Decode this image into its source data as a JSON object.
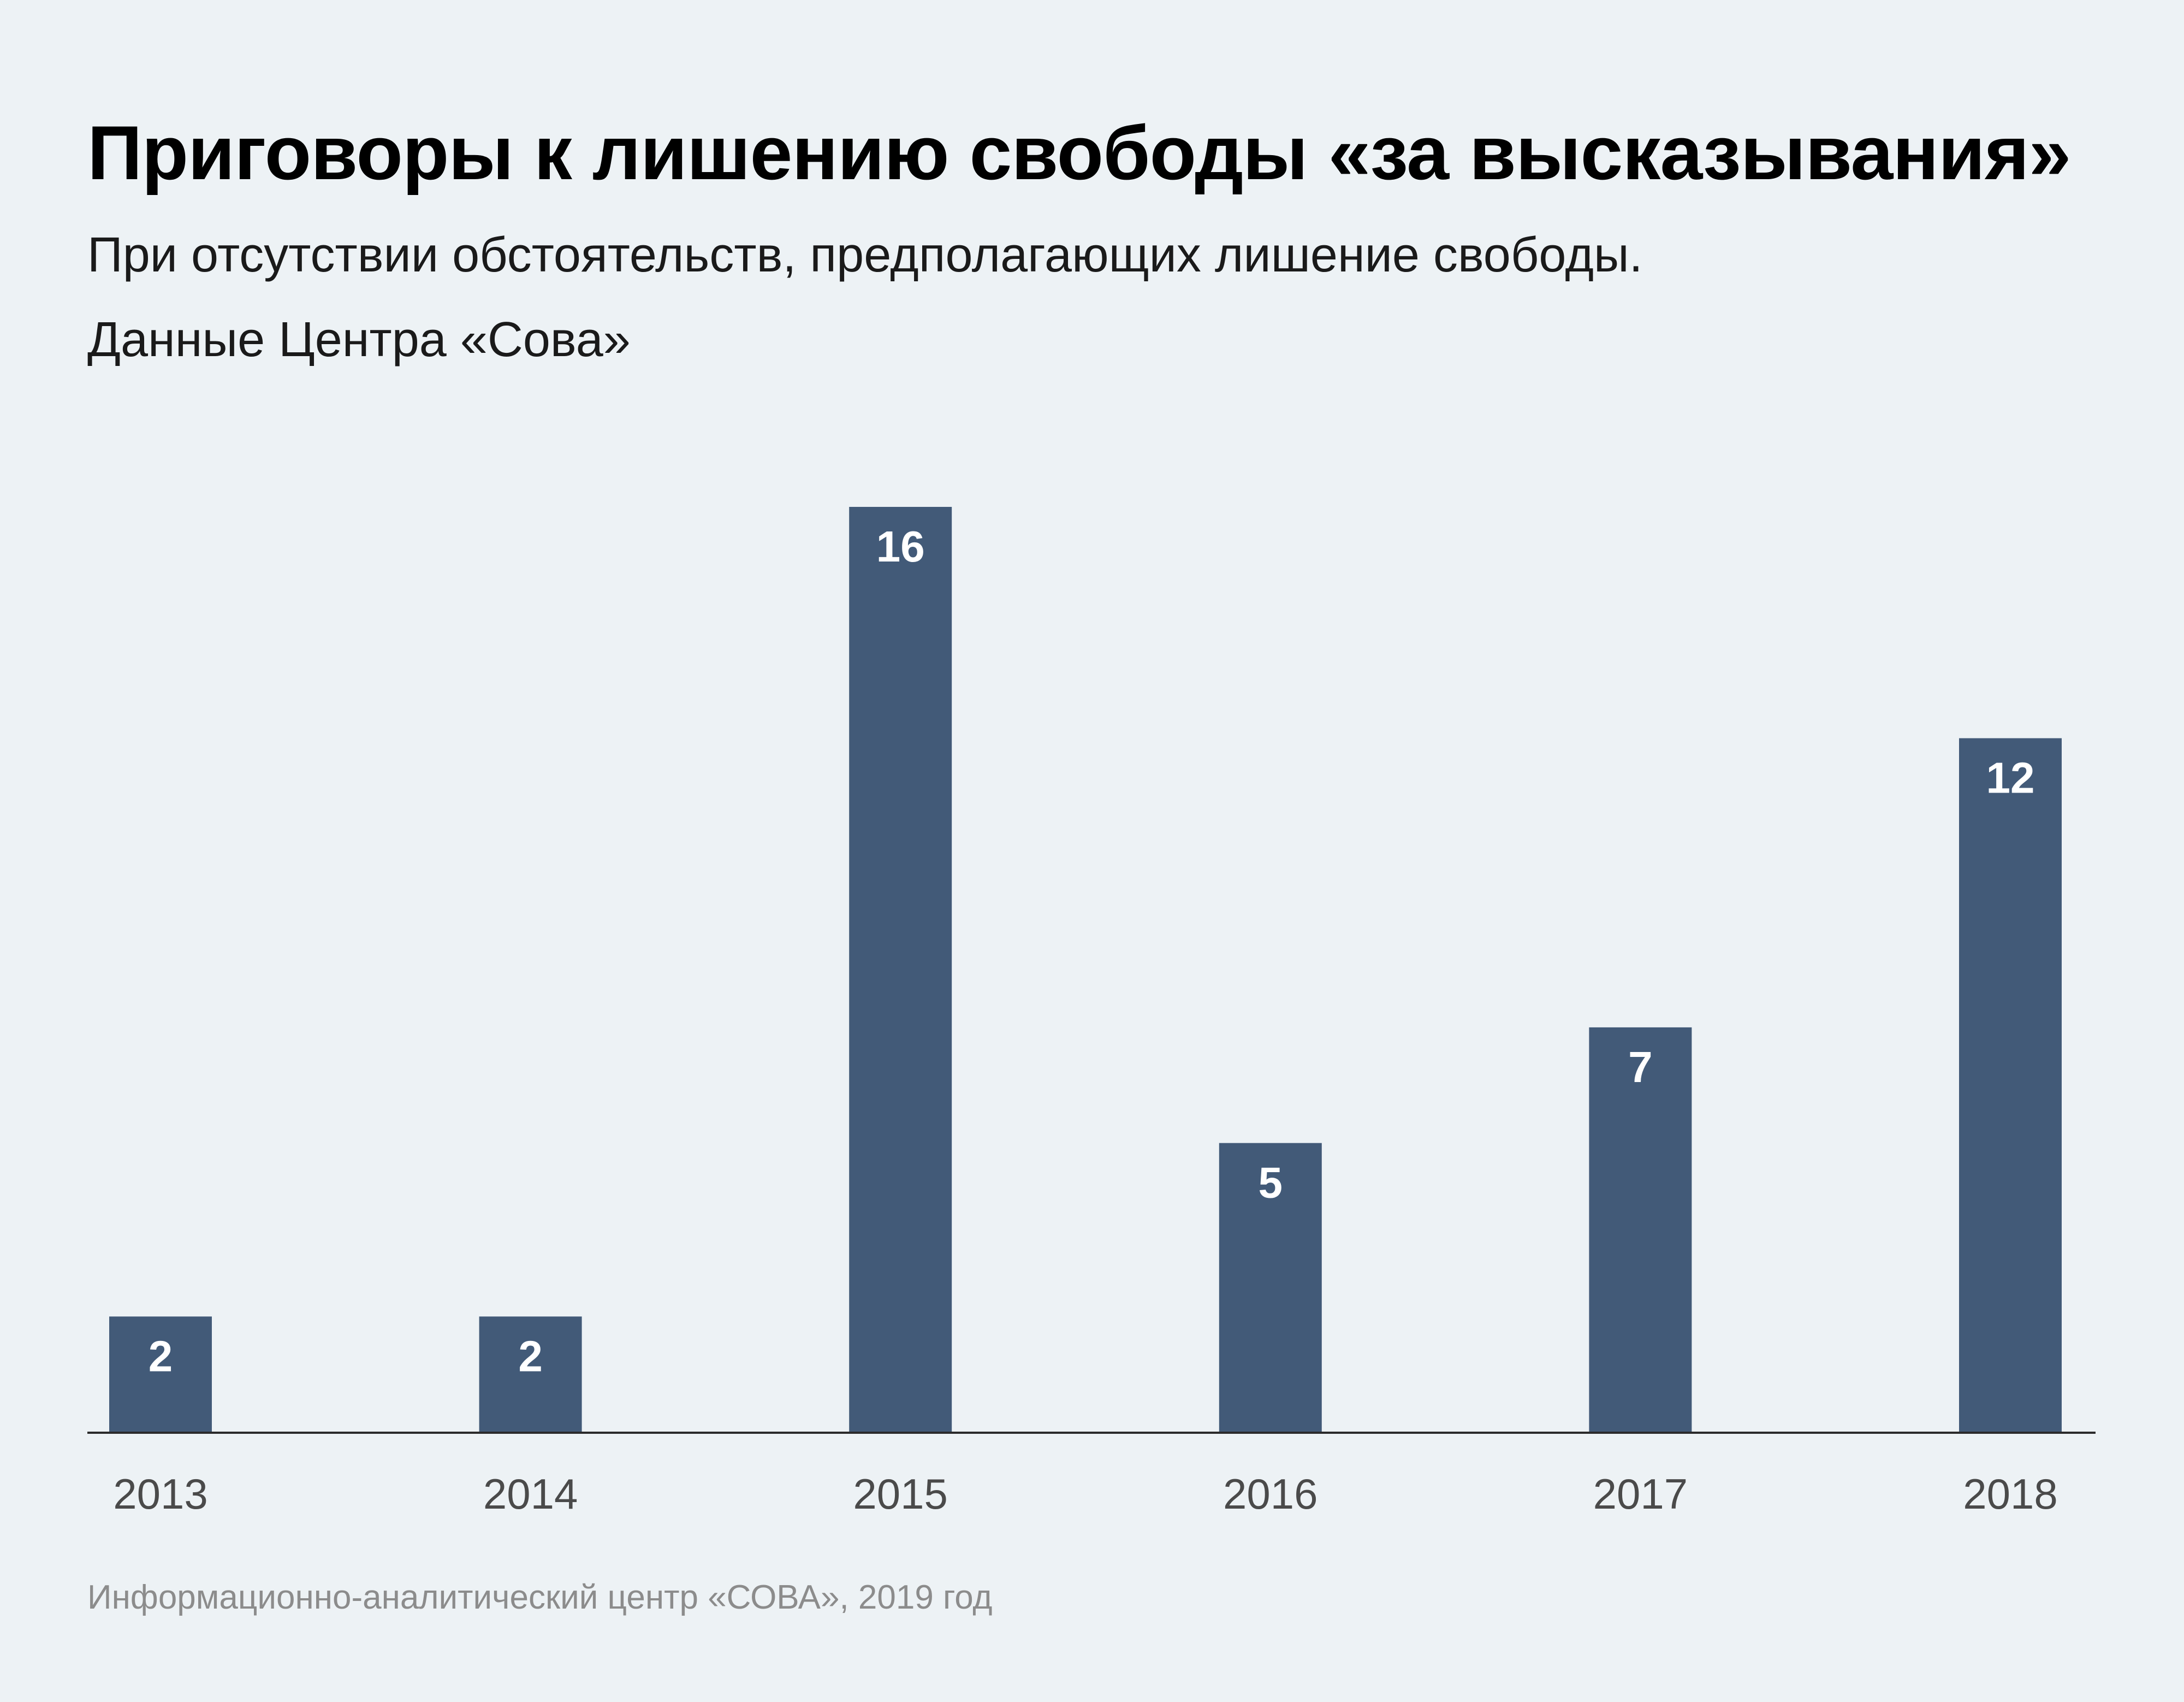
{
  "header": {
    "title": "Приговоры к лишению свободы «за высказывания»",
    "subtitle_line1": "При отсутствии обстоятельств, предполагающих лишение свободы.",
    "subtitle_line2": "Данные Центра «Сова»"
  },
  "footer": {
    "source": "Информационно-аналитический центр «СОВА», 2019 год"
  },
  "colors": {
    "bar": "#425a78",
    "background": "#edf2f5",
    "axis": "#2b2b2b"
  },
  "chart_data": {
    "type": "bar",
    "categories": [
      "2013",
      "2014",
      "2015",
      "2016",
      "2017",
      "2018"
    ],
    "values": [
      2,
      2,
      16,
      5,
      7,
      12
    ],
    "title": "Приговоры к лишению свободы «за высказывания»",
    "xlabel": "",
    "ylabel": "",
    "ylim": [
      0,
      16
    ],
    "grid": false,
    "legend": "none",
    "data_labels": true
  }
}
